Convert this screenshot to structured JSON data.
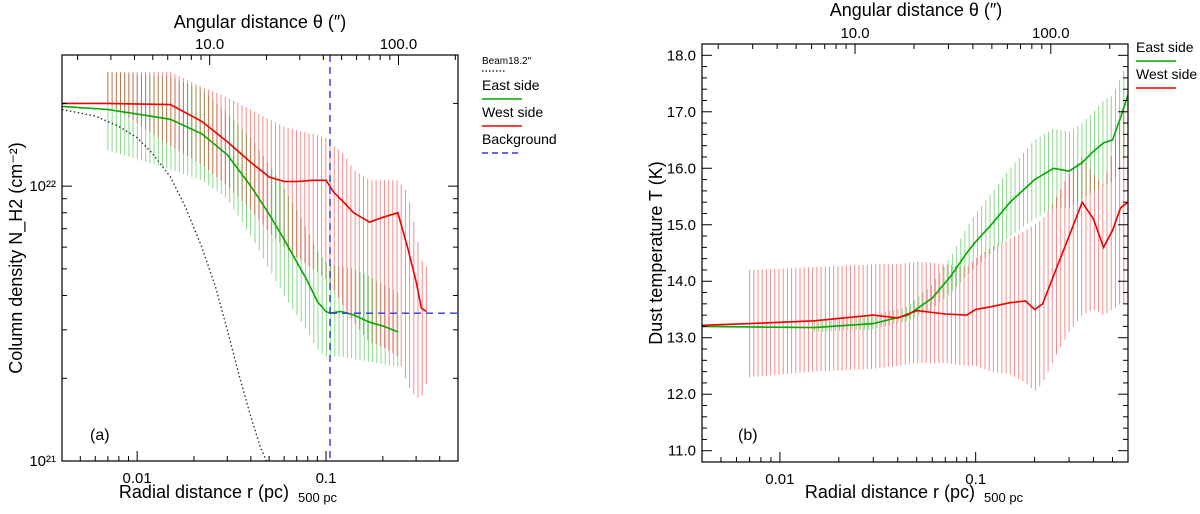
{
  "chart_data": [
    {
      "panel_label": "(a)",
      "type": "line",
      "xlabel": "Radial distance r (pc)",
      "xlabel_note": "500 pc",
      "x2label": "Angular distance θ (″)",
      "ylabel": "Column density N_H2 (cm⁻²)",
      "xscale": "log",
      "yscale": "log",
      "xlim": [
        0.004,
        0.5
      ],
      "ylim": [
        1e+21,
        3e+22
      ],
      "x_ticks": [
        {
          "value": 0.01,
          "label": "0.01"
        },
        {
          "value": 0.1,
          "label": "0.1"
        }
      ],
      "x2_ticks": [
        {
          "value": 0.0242,
          "label": "10.0"
        },
        {
          "value": 0.242,
          "label": "100.0"
        }
      ],
      "y_ticks": [
        {
          "value": 1e+21,
          "label": "10²¹"
        },
        {
          "value": 1e+22,
          "label": "10²²"
        }
      ],
      "legend": {
        "placement": "outside-right",
        "items": [
          {
            "label": "Beam18.2″",
            "color": "#333333",
            "style": "dotted"
          },
          {
            "label": "East side",
            "color": "#00aa00",
            "style": "solid"
          },
          {
            "label": "West side",
            "color": "#ee0000",
            "style": "solid"
          },
          {
            "label": "Background",
            "color": "#3333ee",
            "style": "dashed"
          }
        ]
      },
      "series": [
        {
          "name": "East side",
          "color": "#00aa00",
          "x": [
            0.004,
            0.007,
            0.015,
            0.022,
            0.03,
            0.04,
            0.05,
            0.06,
            0.07,
            0.08,
            0.09,
            0.1,
            0.105,
            0.12,
            0.14,
            0.17,
            0.2,
            0.24
          ],
          "y": [
            1.95e+22,
            1.9e+22,
            1.75e+22,
            1.55e+22,
            1.3e+22,
            1e+22,
            7.9e+21,
            6.4e+21,
            5.3e+21,
            4.5e+21,
            3.8e+21,
            3.5e+21,
            3.45e+21,
            3.5e+21,
            3.4e+21,
            3.2e+21,
            3.1e+21,
            2.95e+21
          ],
          "err_low": [
            1.95e+22,
            1.35e+22,
            1.15e+22,
            1.05e+22,
            9e+21,
            6.6e+21,
            5e+21,
            4e+21,
            3.4e+21,
            2.95e+21,
            2.55e+21,
            2.4e+21,
            2.4e+21,
            2.4e+21,
            2.35e+21,
            2.3e+21,
            2.25e+21,
            2.2e+21
          ],
          "err_high": [
            1.95e+22,
            2.6e+22,
            2.5e+22,
            2.25e+22,
            1.85e+22,
            1.5e+22,
            1.2e+22,
            9.8e+21,
            8.2e+21,
            6.9e+21,
            5.8e+21,
            5.3e+21,
            5.2e+21,
            5.1e+21,
            5e+21,
            4.7e+21,
            4.4e+21,
            4.1e+21
          ]
        },
        {
          "name": "West side",
          "color": "#ee0000",
          "x": [
            0.004,
            0.007,
            0.015,
            0.022,
            0.03,
            0.04,
            0.05,
            0.06,
            0.07,
            0.085,
            0.1,
            0.11,
            0.125,
            0.14,
            0.17,
            0.2,
            0.24,
            0.27,
            0.3,
            0.32,
            0.34
          ],
          "y": [
            2e+22,
            2e+22,
            1.98e+22,
            1.72e+22,
            1.45e+22,
            1.22e+22,
            1.08e+22,
            1.04e+22,
            1.04e+22,
            1.05e+22,
            1.05e+22,
            9.5e+21,
            8.7e+21,
            8e+21,
            7.4e+21,
            7.7e+21,
            8e+21,
            6e+21,
            4.5e+21,
            3.6e+21,
            3.5e+21
          ],
          "err_low": [
            2e+22,
            2e+22,
            1.4e+22,
            1.2e+22,
            1e+22,
            8.2e+21,
            6.8e+21,
            6e+21,
            5.5e+21,
            5e+21,
            4.6e+21,
            4.2e+21,
            3.6e+21,
            3.2e+21,
            2.7e+21,
            2.6e+21,
            2.4e+21,
            1.9e+21,
            1.7e+21,
            1.7e+21,
            1.9e+21
          ],
          "err_high": [
            2e+22,
            2.6e+22,
            2.6e+22,
            2.3e+22,
            2.1e+22,
            1.9e+22,
            1.75e+22,
            1.65e+22,
            1.6e+22,
            1.55e+22,
            1.5e+22,
            1.4e+22,
            1.3e+22,
            1.15e+22,
            1.05e+22,
            1.05e+22,
            1.05e+22,
            9.5e+21,
            6.8e+21,
            5.4e+21,
            5.1e+21
          ]
        },
        {
          "name": "Beam18.2″",
          "color": "#333333",
          "style": "dotted",
          "x": [
            0.004,
            0.006,
            0.008,
            0.01,
            0.012,
            0.015,
            0.018,
            0.022,
            0.026,
            0.03,
            0.035,
            0.04,
            0.045,
            0.05
          ],
          "y": [
            1.9e+22,
            1.8e+22,
            1.65e+22,
            1.5e+22,
            1.32e+22,
            1.08e+22,
            8.4e+21,
            6e+21,
            4.3e+21,
            3e+21,
            2e+21,
            1.45e+21,
            1.12e+21,
            9.5e+20
          ]
        }
      ],
      "background": {
        "label": "Background",
        "r": 0.105,
        "N": 3.45e+21,
        "r_max": 0.5,
        "color": "#3333ee"
      }
    },
    {
      "panel_label": "(b)",
      "type": "line",
      "xlabel": "Radial distance r (pc)",
      "xlabel_note": "500 pc",
      "x2label": "Angular distance θ (″)",
      "ylabel": "Dust temperature T (K)",
      "xscale": "log",
      "yscale": "linear",
      "xlim": [
        0.004,
        0.6
      ],
      "ylim": [
        10.8,
        18.2
      ],
      "x_ticks": [
        {
          "value": 0.01,
          "label": "0.01"
        },
        {
          "value": 0.1,
          "label": "0.1"
        }
      ],
      "x2_ticks": [
        {
          "value": 0.0242,
          "label": "10.0"
        },
        {
          "value": 0.242,
          "label": "100.0"
        }
      ],
      "y_ticks": [
        {
          "value": 11,
          "label": "11.0"
        },
        {
          "value": 12,
          "label": "12.0"
        },
        {
          "value": 13,
          "label": "13.0"
        },
        {
          "value": 14,
          "label": "14.0"
        },
        {
          "value": 15,
          "label": "15.0"
        },
        {
          "value": 16,
          "label": "16.0"
        },
        {
          "value": 17,
          "label": "17.0"
        },
        {
          "value": 18,
          "label": "18.0"
        }
      ],
      "legend": {
        "placement": "outside-right",
        "items": [
          {
            "label": "East side",
            "color": "#00aa00",
            "style": "solid"
          },
          {
            "label": "West side",
            "color": "#ee0000",
            "style": "solid"
          }
        ]
      },
      "series": [
        {
          "name": "East side",
          "color": "#00aa00",
          "x": [
            0.004,
            0.015,
            0.03,
            0.045,
            0.06,
            0.075,
            0.09,
            0.1,
            0.12,
            0.15,
            0.2,
            0.25,
            0.3,
            0.35,
            0.4,
            0.45,
            0.5,
            0.55,
            0.6
          ],
          "y": [
            13.2,
            13.18,
            13.25,
            13.4,
            13.7,
            14.1,
            14.5,
            14.7,
            15.0,
            15.4,
            15.8,
            16.0,
            15.95,
            16.1,
            16.3,
            16.45,
            16.5,
            16.9,
            17.3
          ],
          "err_low": [
            13.2,
            13.1,
            13.15,
            13.3,
            13.5,
            13.8,
            14.1,
            14.25,
            14.5,
            14.8,
            15.1,
            15.3,
            15.3,
            15.45,
            15.6,
            15.7,
            15.75,
            16.0,
            16.4
          ],
          "err_high": [
            13.2,
            13.3,
            13.4,
            13.55,
            13.95,
            14.45,
            14.95,
            15.2,
            15.55,
            16.0,
            16.5,
            16.7,
            16.65,
            16.8,
            17.0,
            17.2,
            17.3,
            17.6,
            17.9
          ]
        },
        {
          "name": "West side",
          "color": "#ee0000",
          "x": [
            0.004,
            0.007,
            0.015,
            0.03,
            0.04,
            0.05,
            0.07,
            0.09,
            0.1,
            0.12,
            0.15,
            0.18,
            0.2,
            0.22,
            0.25,
            0.3,
            0.35,
            0.4,
            0.45,
            0.5,
            0.55,
            0.6
          ],
          "y": [
            13.22,
            13.25,
            13.3,
            13.4,
            13.35,
            13.48,
            13.42,
            13.4,
            13.5,
            13.55,
            13.62,
            13.65,
            13.5,
            13.6,
            14.1,
            14.8,
            15.4,
            15.1,
            14.6,
            14.9,
            15.3,
            15.4
          ],
          "err_low": [
            13.22,
            12.3,
            12.4,
            12.45,
            12.5,
            12.55,
            12.55,
            12.5,
            12.5,
            12.4,
            12.35,
            12.2,
            12.05,
            12.2,
            12.6,
            13.1,
            13.4,
            13.5,
            13.4,
            13.5,
            13.6,
            13.6
          ],
          "err_high": [
            13.22,
            14.2,
            14.25,
            14.3,
            14.3,
            14.35,
            14.3,
            14.25,
            14.4,
            14.6,
            14.75,
            14.9,
            15.0,
            15.1,
            15.4,
            15.9,
            16.2,
            15.9,
            15.7,
            16.3,
            16.9,
            17.3
          ]
        }
      ]
    }
  ]
}
